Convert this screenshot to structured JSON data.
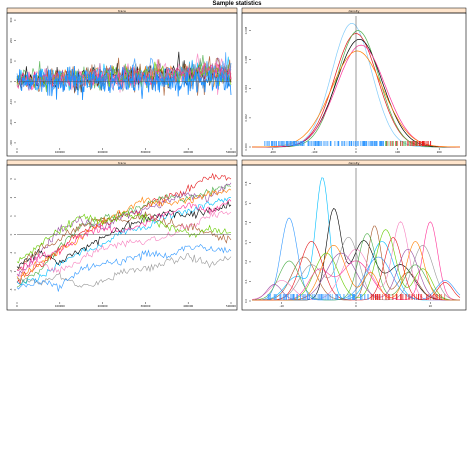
{
  "page_title": "Sample statistics",
  "colors": {
    "strip_bg": "#FFE5CC",
    "strip_border": "#000000",
    "panel_border": "#000000",
    "refline": "#555555",
    "series": [
      "#E41A1C",
      "#4DAF4A",
      "#984EA3",
      "#FF7F00",
      "#00BFFF",
      "#000000",
      "#A65628",
      "#F781BF",
      "#999999",
      "#3399FF",
      "#66CC00",
      "#FF3399"
    ],
    "rug_low": "#3399FF",
    "rug_high": "#E41A1C"
  },
  "chart_data": [
    {
      "type": "line",
      "strip_title": "trace",
      "xlabel": "",
      "ylabel": "",
      "x_ticks": [
        "0",
        "100000",
        "200000",
        "300000",
        "400000",
        "500000"
      ],
      "y_ticks": [
        "-300",
        "-200",
        "-100",
        "0",
        "100",
        "200",
        "300"
      ],
      "xlim": [
        0,
        500000
      ],
      "ylim": [
        -320,
        320
      ],
      "refline_y": 0,
      "grid": false,
      "series_count": 12,
      "envelope": {
        "x": [
          0,
          500000
        ],
        "upper": [
          130,
          230
        ],
        "lower": [
          -120,
          -140
        ]
      }
    },
    {
      "type": "line",
      "strip_title": "density",
      "xlabel": "",
      "ylabel": "",
      "x_ticks": [
        "-200",
        "-100",
        "0",
        "100",
        "200"
      ],
      "y_ticks": [
        "0.000",
        "0.002",
        "0.004",
        "0.006",
        "0.008"
      ],
      "xlim": [
        -250,
        250
      ],
      "ylim": [
        0,
        0.009
      ],
      "refline_x": 0,
      "grid": false,
      "series": [
        {
          "mean": -10,
          "sd": 48,
          "peak": 0.0085
        },
        {
          "mean": 0,
          "sd": 52,
          "peak": 0.0078
        },
        {
          "mean": 5,
          "sd": 50,
          "peak": 0.008
        },
        {
          "mean": 8,
          "sd": 55,
          "peak": 0.0074
        },
        {
          "mean": 12,
          "sd": 58,
          "peak": 0.007
        },
        {
          "mean": 3,
          "sd": 62,
          "peak": 0.0066
        }
      ]
    },
    {
      "type": "line",
      "strip_title": "trace",
      "xlabel": "",
      "ylabel": "",
      "x_ticks": [
        "0",
        "100000",
        "200000",
        "300000",
        "400000",
        "500000"
      ],
      "y_ticks": [
        "-3",
        "-2",
        "-1",
        "0",
        "1",
        "2",
        "3"
      ],
      "xlim": [
        0,
        500000
      ],
      "ylim": [
        -3.6,
        3.6
      ],
      "refline_y": 0,
      "grid": false,
      "series": [
        {
          "x": [
            0,
            50000,
            100000,
            150000,
            200000,
            250000,
            300000,
            350000,
            400000,
            450000,
            500000
          ],
          "y": [
            -2.6,
            -1.8,
            -0.8,
            0.1,
            0.6,
            1.0,
            1.5,
            2.0,
            2.4,
            3.2,
            3.0
          ]
        },
        {
          "x": [
            0,
            50000,
            100000,
            150000,
            200000,
            250000,
            300000,
            350000,
            400000,
            450000,
            500000
          ],
          "y": [
            -2.8,
            -2.0,
            -0.6,
            0.4,
            0.9,
            1.2,
            1.6,
            2.1,
            1.9,
            2.4,
            2.6
          ]
        },
        {
          "x": [
            0,
            50000,
            100000,
            150000,
            200000,
            250000,
            300000,
            350000,
            400000,
            450000,
            500000
          ],
          "y": [
            -2.3,
            -1.2,
            0.3,
            0.8,
            0.3,
            1.1,
            1.4,
            1.8,
            2.2,
            2.0,
            2.8
          ]
        },
        {
          "x": [
            0,
            50000,
            100000,
            150000,
            200000,
            250000,
            300000,
            350000,
            400000,
            450000,
            500000
          ],
          "y": [
            -2.5,
            -1.6,
            -0.9,
            -0.2,
            0.8,
            1.3,
            1.9,
            1.6,
            1.9,
            2.2,
            2.4
          ]
        },
        {
          "x": [
            0,
            50000,
            100000,
            150000,
            200000,
            250000,
            300000,
            350000,
            400000,
            450000,
            500000
          ],
          "y": [
            -2.7,
            -2.4,
            -1.6,
            -1.0,
            -0.6,
            0.2,
            0.4,
            1.0,
            1.3,
            1.7,
            2.0
          ]
        },
        {
          "x": [
            0,
            50000,
            100000,
            150000,
            200000,
            250000,
            300000,
            350000,
            400000,
            450000,
            500000
          ],
          "y": [
            -1.8,
            -1.0,
            -1.5,
            -0.8,
            -0.2,
            0.4,
            0.9,
            1.2,
            1.0,
            1.3,
            1.6
          ]
        },
        {
          "x": [
            0,
            50000,
            100000,
            150000,
            200000,
            250000,
            300000,
            350000,
            400000,
            450000,
            500000
          ],
          "y": [
            -2.0,
            -0.8,
            -0.3,
            0.5,
            0.9,
            0.7,
            1.1,
            0.6,
            0.4,
            0.1,
            -0.3
          ]
        },
        {
          "x": [
            0,
            50000,
            100000,
            150000,
            200000,
            250000,
            300000,
            350000,
            400000,
            450000,
            500000
          ],
          "y": [
            -2.2,
            -1.5,
            -2.0,
            -1.3,
            -0.8,
            -0.4,
            -0.5,
            -0.1,
            0.4,
            1.0,
            1.2
          ]
        },
        {
          "x": [
            0,
            50000,
            100000,
            150000,
            200000,
            250000,
            300000,
            350000,
            400000,
            450000,
            500000
          ],
          "y": [
            -2.4,
            -2.6,
            -2.2,
            -2.8,
            -2.5,
            -2.0,
            -1.8,
            -1.5,
            -1.2,
            -1.6,
            -1.2
          ]
        },
        {
          "x": [
            0,
            50000,
            100000,
            150000,
            200000,
            250000,
            300000,
            350000,
            400000,
            450000,
            500000
          ],
          "y": [
            -2.9,
            -2.5,
            -2.8,
            -1.9,
            -1.6,
            -1.4,
            -1.0,
            -1.2,
            -0.6,
            -0.8,
            -0.9
          ]
        },
        {
          "x": [
            0,
            50000,
            100000,
            150000,
            200000,
            250000,
            300000,
            350000,
            400000,
            450000,
            500000
          ],
          "y": [
            -1.5,
            -0.6,
            0.2,
            1.0,
            0.6,
            1.1,
            0.9,
            0.4,
            0.0,
            0.3,
            0.1
          ]
        },
        {
          "x": [
            0,
            50000,
            100000,
            150000,
            200000,
            250000,
            300000,
            350000,
            400000,
            450000,
            500000
          ],
          "y": [
            -1.9,
            -1.2,
            -0.9,
            -0.1,
            0.4,
            0.2,
            0.6,
            1.2,
            1.6,
            1.3,
            1.8
          ]
        }
      ]
    },
    {
      "type": "line",
      "strip_title": "density",
      "xlabel": "",
      "ylabel": "",
      "x_ticks": [
        "-10",
        "0",
        "10"
      ],
      "y_ticks": [
        "0.0",
        "0.1",
        "0.2",
        "0.3",
        "0.4",
        "0.5",
        "0.6"
      ],
      "xlim": [
        -14,
        14
      ],
      "ylim": [
        0,
        0.68
      ],
      "refline_x": 0,
      "grid": false,
      "series": [
        {
          "peaks": [
            [
              -4.5,
              0.62,
              0.9
            ],
            [
              3.5,
              0.3,
              1.6
            ],
            [
              -8,
              0.12,
              1.5
            ]
          ]
        },
        {
          "peaks": [
            [
              -3,
              0.46,
              1.0
            ],
            [
              1,
              0.3,
              1.5
            ],
            [
              6,
              0.18,
              1.8
            ]
          ]
        },
        {
          "peaks": [
            [
              2.5,
              0.38,
              0.9
            ],
            [
              -7,
              0.22,
              1.6
            ],
            [
              7,
              0.14,
              1.4
            ]
          ]
        },
        {
          "peaks": [
            [
              6,
              0.4,
              1.1
            ],
            [
              0,
              0.26,
              1.8
            ],
            [
              -10,
              0.1,
              1.5
            ]
          ]
        },
        {
          "peaks": [
            [
              -1,
              0.32,
              1.4
            ],
            [
              9,
              0.28,
              1.4
            ],
            [
              -6,
              0.18,
              1.6
            ]
          ]
        },
        {
          "peaks": [
            [
              -9,
              0.42,
              1.1
            ],
            [
              3,
              0.22,
              1.8
            ],
            [
              12,
              0.1,
              1.2
            ]
          ]
        },
        {
          "peaks": [
            [
              4,
              0.36,
              1.3
            ],
            [
              -4,
              0.24,
              1.6
            ],
            [
              9,
              0.16,
              1.2
            ]
          ]
        },
        {
          "peaks": [
            [
              10,
              0.4,
              1.0
            ],
            [
              0,
              0.2,
              2.0
            ],
            [
              -5,
              0.15,
              1.4
            ]
          ]
        },
        {
          "peaks": [
            [
              -6,
              0.3,
              1.5
            ],
            [
              5,
              0.32,
              1.2
            ],
            [
              12,
              0.09,
              1.0
            ]
          ]
        },
        {
          "peaks": [
            [
              1.5,
              0.34,
              1.2
            ],
            [
              -9,
              0.2,
              1.4
            ],
            [
              8,
              0.18,
              1.5
            ]
          ]
        },
        {
          "peaks": [
            [
              -2,
              0.24,
              2.0
            ],
            [
              7,
              0.26,
              1.4
            ],
            [
              -11,
              0.08,
              1.0
            ]
          ]
        },
        {
          "peaks": [
            [
              8,
              0.3,
              1.2
            ],
            [
              -3,
              0.28,
              1.6
            ],
            [
              2,
              0.14,
              1.0
            ]
          ]
        }
      ],
      "rug_range": [
        -12,
        12
      ]
    }
  ]
}
